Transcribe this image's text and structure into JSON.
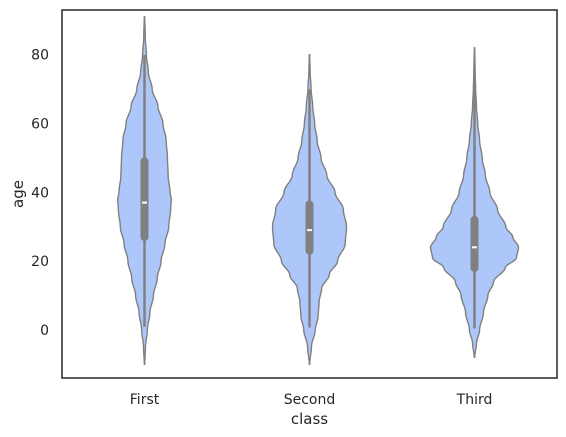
{
  "chart_data": {
    "type": "violin",
    "title": "",
    "xlabel": "class",
    "ylabel": "age",
    "ylim": [
      -14,
      93
    ],
    "yticks": [
      0,
      20,
      40,
      60,
      80
    ],
    "yticklabels": [
      "0",
      "20",
      "40",
      "60",
      "80"
    ],
    "grid": false,
    "legend": "none",
    "categories": [
      "First",
      "Second",
      "Third"
    ],
    "colors": {
      "violin_fill": "#aec7fa",
      "violin_stroke": "#7f7f7f",
      "box": "#808080",
      "median": "#ffffff",
      "frame": "#262626"
    },
    "series": [
      {
        "category": "First",
        "min": 0.9,
        "q1": 27,
        "median": 37,
        "q3": 49,
        "max": 80,
        "kde_y_range": [
          -10,
          91
        ],
        "density": [
          [
            -10,
            0.3
          ],
          [
            -5,
            1.5
          ],
          [
            0,
            4.5
          ],
          [
            5,
            8.5
          ],
          [
            10,
            14
          ],
          [
            15,
            20
          ],
          [
            20,
            26
          ],
          [
            25,
            32
          ],
          [
            30,
            38
          ],
          [
            35,
            41
          ],
          [
            38,
            42
          ],
          [
            40,
            40
          ],
          [
            45,
            37
          ],
          [
            50,
            36
          ],
          [
            55,
            34
          ],
          [
            60,
            29
          ],
          [
            65,
            21
          ],
          [
            70,
            12
          ],
          [
            75,
            6
          ],
          [
            80,
            3
          ],
          [
            85,
            1.2
          ],
          [
            91,
            0.3
          ]
        ]
      },
      {
        "category": "Second",
        "min": 0.7,
        "q1": 23,
        "median": 29,
        "q3": 36.5,
        "max": 70,
        "kde_y_range": [
          -10,
          80
        ],
        "density": [
          [
            -10,
            0.3
          ],
          [
            -5,
            3
          ],
          [
            0,
            9
          ],
          [
            4,
            13.5
          ],
          [
            8,
            15
          ],
          [
            12,
            19
          ],
          [
            16,
            31
          ],
          [
            20,
            44
          ],
          [
            25,
            56
          ],
          [
            30,
            58
          ],
          [
            35,
            53
          ],
          [
            40,
            40
          ],
          [
            45,
            27
          ],
          [
            50,
            18
          ],
          [
            55,
            12
          ],
          [
            60,
            8
          ],
          [
            65,
            5
          ],
          [
            70,
            2.5
          ],
          [
            75,
            1
          ],
          [
            80,
            0.3
          ]
        ]
      },
      {
        "category": "Third",
        "min": 0.4,
        "q1": 18,
        "median": 24,
        "q3": 32,
        "max": 74,
        "kde_y_range": [
          -8,
          82
        ],
        "density": [
          [
            -8,
            0.3
          ],
          [
            -4,
            3
          ],
          [
            0,
            8
          ],
          [
            5,
            14
          ],
          [
            10,
            21
          ],
          [
            14,
            30
          ],
          [
            18,
            48
          ],
          [
            21,
            66
          ],
          [
            24,
            69
          ],
          [
            27,
            60
          ],
          [
            30,
            49
          ],
          [
            35,
            36
          ],
          [
            40,
            24
          ],
          [
            45,
            17
          ],
          [
            50,
            12
          ],
          [
            55,
            8
          ],
          [
            60,
            5
          ],
          [
            65,
            3
          ],
          [
            70,
            1.8
          ],
          [
            75,
            1
          ],
          [
            82,
            0.3
          ]
        ]
      }
    ]
  }
}
